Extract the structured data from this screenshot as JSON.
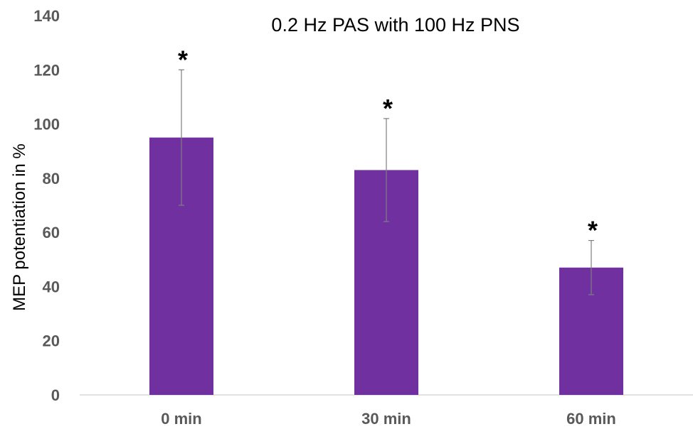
{
  "chart_data": {
    "type": "bar",
    "title": "0.2 Hz PAS with 100 Hz PNS",
    "xlabel": "",
    "ylabel": "MEP potentiation in %",
    "categories": [
      "0 min",
      "30 min",
      "60 min"
    ],
    "series": [
      {
        "values": [
          95,
          83,
          47
        ],
        "error_upper": [
          25,
          19,
          10
        ],
        "error_lower": [
          25,
          19,
          10
        ]
      }
    ],
    "annotations": [
      "*",
      "*",
      "*"
    ],
    "ylim": [
      0,
      140
    ],
    "yticks": [
      0,
      20,
      40,
      60,
      80,
      100,
      120,
      140
    ],
    "grid": false,
    "legend": "none",
    "colors": {
      "bar": "#7030a0",
      "error_bar": "#7f7f7f",
      "axis_line": "#d9d9d9",
      "tick_text": "#595959",
      "title_text": "#000000",
      "annotation_text": "#000000"
    }
  }
}
